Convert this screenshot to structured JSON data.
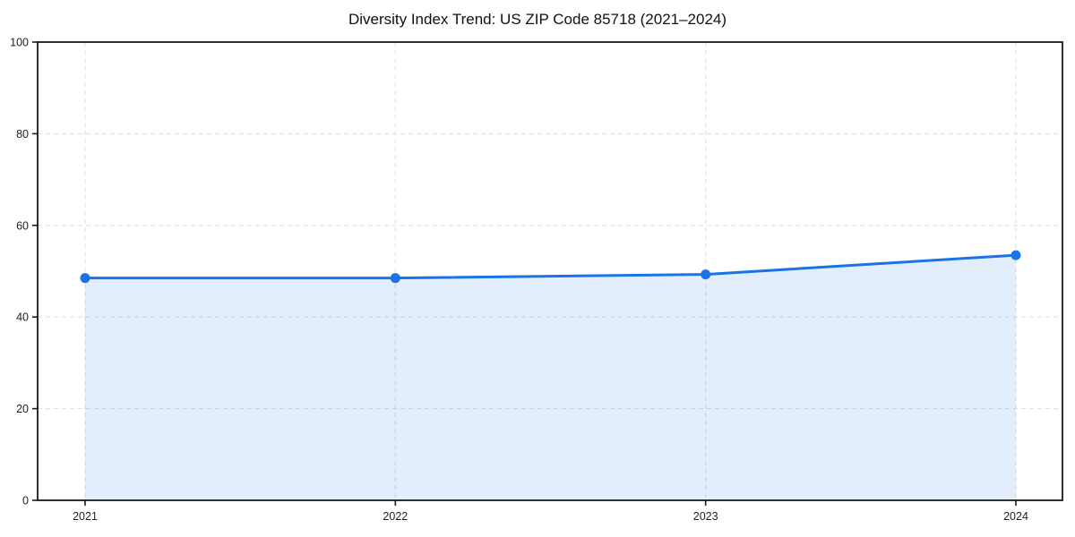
{
  "title": "Diversity Index Trend: US ZIP Code 85718 (2021–2024)",
  "chart_data": {
    "type": "area",
    "title": "Diversity Index Trend: US ZIP Code 85718 (2021–2024)",
    "categories": [
      "2021",
      "2022",
      "2023",
      "2024"
    ],
    "values": [
      48.5,
      48.5,
      49.3,
      53.5
    ],
    "series": [
      {
        "name": "Diversity Index",
        "values": [
          48.5,
          48.5,
          49.3,
          53.5
        ]
      }
    ],
    "xlabel": "",
    "ylabel": "",
    "ylim": [
      0,
      100
    ],
    "yticks": [
      0,
      20,
      40,
      60,
      80,
      100
    ],
    "grid": true,
    "grid_style": "dashed",
    "legend": "none",
    "marker": "circle",
    "colors": {
      "line": "#1a73e8",
      "marker": "#1a73e8",
      "fill": "rgba(26,115,232,0.12)",
      "grid": "#e0e0e0",
      "axis": "#1a1a1a",
      "tick_label": "#1f1f1f",
      "title": "#111111",
      "background": "#ffffff"
    }
  }
}
